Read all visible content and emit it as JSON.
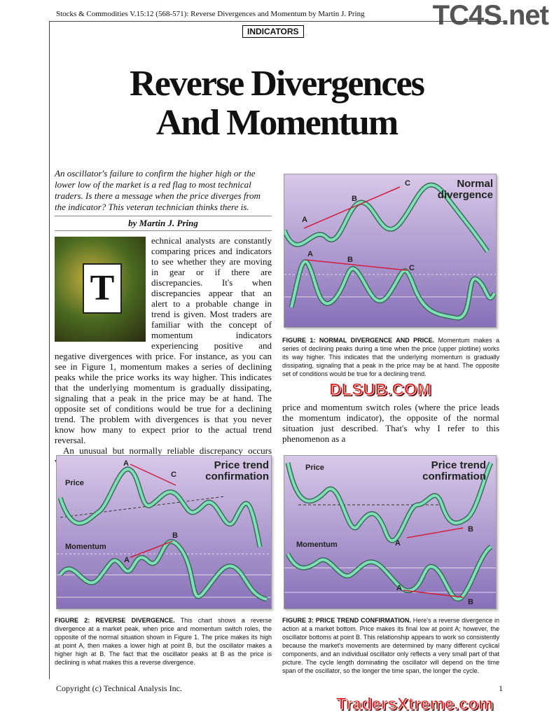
{
  "header": {
    "running_head": "Stocks & Commodities V.15:12 (568-571): Reverse Divergences and Momentum by Martin J. Pring",
    "section": "INDICATORS",
    "logo_top": "TC4S.net",
    "logo_bottom": "TradersXtreme.com",
    "watermark_mid": "DLSUB.COM"
  },
  "article": {
    "title_line1": "Reverse Divergences",
    "title_line2": "And Momentum",
    "intro": "An oscillator's failure to confirm the higher high or the lower low of the market is a red flag to most technical traders. Is there a message when the price diverges from the indicator? This veteran technician thinks there is.",
    "byline": "by Martin J. Pring",
    "dropcap": "T",
    "para1_wrap": "echnical analysts are constantly comparing prices and indicators to see whether they are moving in gear or if there are discrepancies. It's when discrepancies appear that an alert to a probable change in trend is given. Most traders are familiar with the concept of momentum indicators experiencing positive and negative divergences",
    "para1_rest": "with price. For instance, as you can see in Figure 1, momentum makes a series of declining peaks while the price works its way higher. This indicates that the underlying momentum is gradually dissipating, signaling that a peak in the price may be at hand. The opposite set of conditions would be true for a declining trend. The problem with divergences is that you never know how many to expect prior to the actual trend reversal.",
    "para2": "An unusual but normally reliable discrepancy occurs when",
    "col2": "price and momentum switch roles (where the price leads the momentum indicator), the opposite of the normal situation just described. That's why I refer to this phenomenon as a"
  },
  "figures": [
    {
      "title": "Normal divergence",
      "labels": [
        "A",
        "B",
        "C",
        "A",
        "B",
        "C"
      ],
      "caption_head": "FIGURE 1: NORMAL DIVERGENCE AND PRICE.",
      "caption": " Momentum makes a series of declining peaks during a time when the price (upper plotline) works its way higher. This indicates that the underlying momentum is gradually dissipating, signaling that a peak in the price may be at hand. The opposite set of conditions would be true for a declining trend."
    },
    {
      "title": "Price trend confirmation",
      "price": "Price",
      "momentum": "Momentum",
      "labels": [
        "A",
        "C",
        "B",
        "A"
      ],
      "caption_head": "FIGURE 2: REVERSE DIVERGENCE.",
      "caption": " This chart shows a reverse divergence at a market peak, when price and momentum switch roles, the opposite of the normal situation shown in Figure 1. The price makes its high at point A, then makes a lower high at point B, but the oscillator makes a higher high at B. The fact that the oscillator peaks at B as the price is declining is what makes this a reverse divergence."
    },
    {
      "title": "Price trend confirmation",
      "price": "Price",
      "momentum": "Momentum",
      "labels": [
        "B",
        "A",
        "A",
        "B"
      ],
      "caption_head": "FIGURE 3: PRICE TREND CONFIRMATION.",
      "caption": " Here's a reverse divergence in action at a market bottom. Price makes its final low at point A; however, the oscillator bottoms at point B. This relationship appears to work so consistently because the market's movements are determined by many different cyclical components, and an individual oscillator only reflects a very small part of that picture. The cycle length dominating the oscillator will depend on the time span of the oscillator, so the longer the time span, the longer the cycle."
    }
  ],
  "footer": {
    "copyright": "Copyright (c) Technical Analysis Inc.",
    "page": "1"
  }
}
